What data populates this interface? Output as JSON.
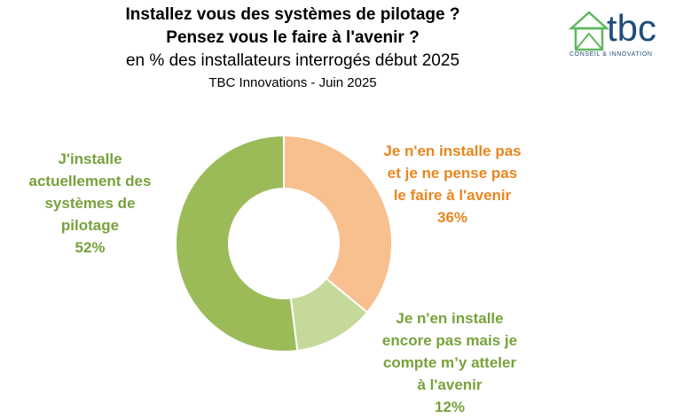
{
  "header": {
    "title_line1": "Installez vous des systèmes de pilotage ?",
    "title_line2": "Pensez vous le faire à l'avenir ?",
    "subtitle": "en % des installateurs interrogés début 2025",
    "source": "TBC Innovations - Juin 2025"
  },
  "logo": {
    "text": "tbc",
    "tagline": "CONSEIL & INNOVATION",
    "color": "#1f4e79",
    "accent": "#5cb85c"
  },
  "chart_data": {
    "type": "pie",
    "donut": true,
    "title": "Installez vous des systèmes de pilotage ? Pensez vous le faire à l'avenir ?",
    "subtitle": "en % des installateurs interrogés début 2025",
    "unit": "%",
    "slices": [
      {
        "label": "Je n'en installe pas et je ne pense pas le faire à l'avenir",
        "value": 36,
        "color": "#f8bf8f"
      },
      {
        "label": "Je n'en installe encore pas mais je compte m’y atteler à l'avenir",
        "value": 12,
        "color": "#c5d99a"
      },
      {
        "label": "J'installe actuellement des systèmes de pilotage",
        "value": 52,
        "color": "#9bbb59"
      }
    ]
  },
  "labels": {
    "installed": "J'installe\nactuellement des\nsystèmes de\npilotage\n52%",
    "not_planned": "Je n'en installe pas\net je ne pense pas\nle faire à l'avenir\n36%",
    "planned": "Je n'en installe\nencore pas mais je\ncompte m’y atteler\nà l'avenir\n12%"
  },
  "colors": {
    "orange_text": "#e8861f",
    "green_text": "#76a23b"
  }
}
